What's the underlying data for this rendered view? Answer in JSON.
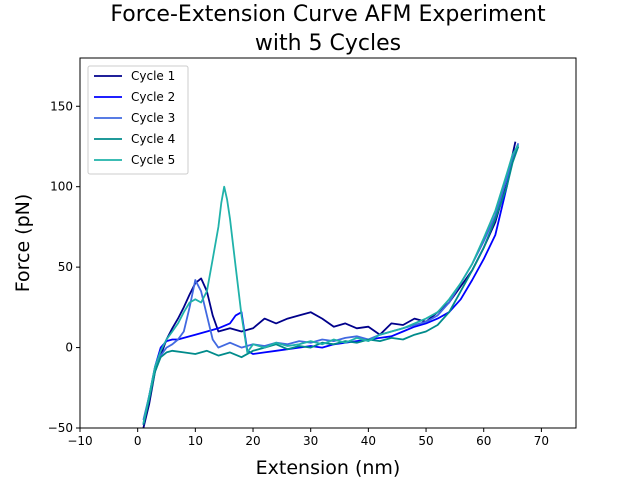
{
  "chart_data": {
    "type": "line",
    "title_lines": [
      "Force-Extension Curve AFM Experiment",
      "with 5 Cycles"
    ],
    "xlabel": "Extension (nm)",
    "ylabel": "Force (pN)",
    "xlim": [
      -10,
      76
    ],
    "ylim": [
      -50,
      180
    ],
    "xticks": [
      -10,
      0,
      10,
      20,
      30,
      40,
      50,
      60,
      70
    ],
    "yticks": [
      -50,
      0,
      50,
      100,
      150
    ],
    "grid": false,
    "legend_position": "top-left",
    "series": [
      {
        "name": "Cycle 1",
        "color": "#00008b",
        "x": [
          1,
          2,
          3,
          4,
          5,
          6,
          7,
          8,
          9,
          10,
          11,
          12,
          13,
          14,
          16,
          18,
          20,
          22,
          24,
          26,
          28,
          30,
          32,
          34,
          36,
          38,
          40,
          42,
          44,
          46,
          48,
          50,
          52,
          54,
          56,
          58,
          60,
          62,
          63,
          64,
          65,
          65.5
        ],
        "y": [
          -50,
          -35,
          -15,
          -5,
          5,
          12,
          18,
          25,
          33,
          40,
          43,
          35,
          20,
          10,
          12,
          10,
          12,
          18,
          15,
          18,
          20,
          22,
          18,
          13,
          15,
          12,
          13,
          8,
          15,
          14,
          18,
          16,
          22,
          28,
          38,
          48,
          62,
          78,
          90,
          105,
          120,
          128
        ]
      },
      {
        "name": "Cycle 2",
        "color": "#0000ff",
        "x": [
          1,
          2,
          3,
          4,
          5,
          6,
          7,
          8,
          10,
          12,
          14,
          16,
          17,
          18,
          19,
          20,
          22,
          24,
          26,
          28,
          30,
          32,
          34,
          36,
          38,
          40,
          42,
          44,
          46,
          48,
          50,
          52,
          54,
          56,
          58,
          60,
          62,
          64,
          65,
          66
        ],
        "y": [
          -48,
          -30,
          -12,
          0,
          4,
          5,
          5,
          6,
          8,
          10,
          12,
          15,
          20,
          22,
          -2,
          -4,
          -3,
          -2,
          -1,
          0,
          1,
          0,
          2,
          3,
          4,
          5,
          6,
          7,
          10,
          13,
          15,
          18,
          22,
          30,
          42,
          55,
          70,
          100,
          118,
          125
        ]
      },
      {
        "name": "Cycle 3",
        "color": "#4169e1",
        "x": [
          1,
          2,
          3,
          4,
          5,
          6,
          7,
          8,
          9,
          10,
          11,
          12,
          13,
          14,
          16,
          18,
          20,
          22,
          24,
          26,
          28,
          30,
          32,
          34,
          36,
          38,
          40,
          42,
          44,
          46,
          48,
          50,
          52,
          54,
          56,
          58,
          60,
          62,
          64,
          65,
          66
        ],
        "y": [
          -45,
          -30,
          -15,
          -5,
          0,
          2,
          5,
          10,
          25,
          42,
          35,
          20,
          5,
          0,
          3,
          0,
          2,
          1,
          3,
          2,
          4,
          3,
          5,
          4,
          6,
          7,
          5,
          8,
          10,
          12,
          14,
          16,
          20,
          28,
          40,
          52,
          66,
          82,
          105,
          118,
          127
        ]
      },
      {
        "name": "Cycle 4",
        "color": "#008b8b",
        "x": [
          1,
          2,
          3,
          4,
          5,
          6,
          8,
          10,
          12,
          14,
          16,
          18,
          20,
          22,
          24,
          26,
          28,
          30,
          32,
          34,
          36,
          38,
          40,
          42,
          44,
          46,
          48,
          50,
          52,
          54,
          56,
          58,
          60,
          62,
          64,
          65,
          66
        ],
        "y": [
          -48,
          -32,
          -15,
          -6,
          -3,
          -2,
          -3,
          -4,
          -2,
          -5,
          -3,
          -6,
          -2,
          0,
          2,
          -1,
          1,
          0,
          3,
          2,
          4,
          3,
          5,
          4,
          6,
          5,
          8,
          10,
          14,
          22,
          35,
          48,
          62,
          80,
          100,
          115,
          125
        ]
      },
      {
        "name": "Cycle 5",
        "color": "#20b2aa",
        "x": [
          1,
          2,
          3,
          4,
          5,
          6,
          7,
          8,
          9,
          10,
          11,
          12,
          13,
          14,
          14.5,
          15,
          15.5,
          16,
          17,
          18,
          19,
          20,
          22,
          24,
          26,
          28,
          30,
          32,
          34,
          36,
          38,
          40,
          42,
          44,
          46,
          48,
          50,
          52,
          54,
          56,
          58,
          60,
          62,
          64,
          65,
          66
        ],
        "y": [
          -47,
          -30,
          -12,
          -2,
          5,
          10,
          15,
          22,
          28,
          30,
          28,
          35,
          55,
          75,
          90,
          100,
          92,
          80,
          50,
          20,
          -3,
          2,
          0,
          3,
          1,
          2,
          4,
          2,
          5,
          3,
          6,
          4,
          8,
          10,
          12,
          15,
          18,
          22,
          30,
          40,
          52,
          68,
          85,
          108,
          120,
          126
        ]
      }
    ]
  }
}
